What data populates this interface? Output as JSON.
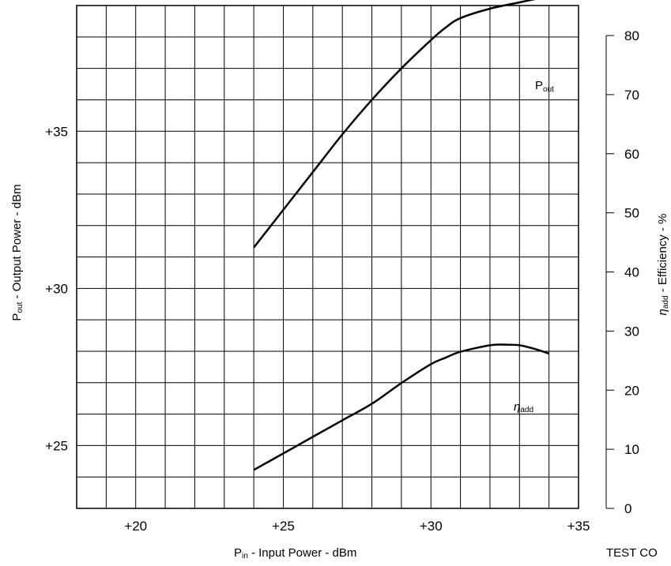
{
  "chart_data": {
    "type": "line",
    "x_axis": {
      "label_main": "P",
      "label_sub": "in",
      "label_rest": " - Input Power - dBm",
      "range": [
        18,
        35
      ],
      "ticks": [
        20,
        25,
        30,
        35
      ],
      "tick_labels": [
        "+20",
        "+25",
        "+30",
        "+35"
      ]
    },
    "y_axis_left": {
      "label_main": "P",
      "label_sub": "out",
      "label_rest": " - Output Power - dBm",
      "range": [
        23,
        39
      ],
      "ticks": [
        25,
        30,
        35
      ],
      "tick_labels": [
        "+25",
        "+30",
        "+35"
      ]
    },
    "y_axis_right": {
      "label_main": "η",
      "label_sub": "add",
      "label_rest": " - Efficiency - %",
      "range": [
        0,
        80
      ],
      "ticks": [
        0,
        10,
        20,
        30,
        40,
        50,
        60,
        70,
        80
      ],
      "tick_labels": [
        "0",
        "10",
        "20",
        "30",
        "40",
        "50",
        "60",
        "70",
        "80"
      ]
    },
    "grid": true,
    "series": [
      {
        "name_main": "P",
        "name_sub": "out",
        "axis": "left",
        "x": [
          24,
          25,
          26,
          27,
          28,
          29,
          30,
          30.5,
          31,
          32,
          33,
          34
        ],
        "y": [
          31.3,
          32.5,
          33.7,
          34.9,
          36.0,
          37.0,
          37.9,
          38.3,
          38.6,
          38.9,
          39.1,
          39.3
        ]
      },
      {
        "name_main": "η",
        "name_sub": "add",
        "axis": "right",
        "x": [
          24,
          25,
          26,
          27,
          28,
          29,
          30,
          30.5,
          31,
          32,
          32.5,
          33,
          33.5,
          34
        ],
        "y": [
          6.5,
          9.3,
          12.1,
          14.9,
          17.7,
          21.2,
          24.4,
          25.5,
          26.5,
          27.6,
          27.7,
          27.6,
          27,
          26.2
        ]
      }
    ],
    "footer_text": "TEST CO"
  }
}
